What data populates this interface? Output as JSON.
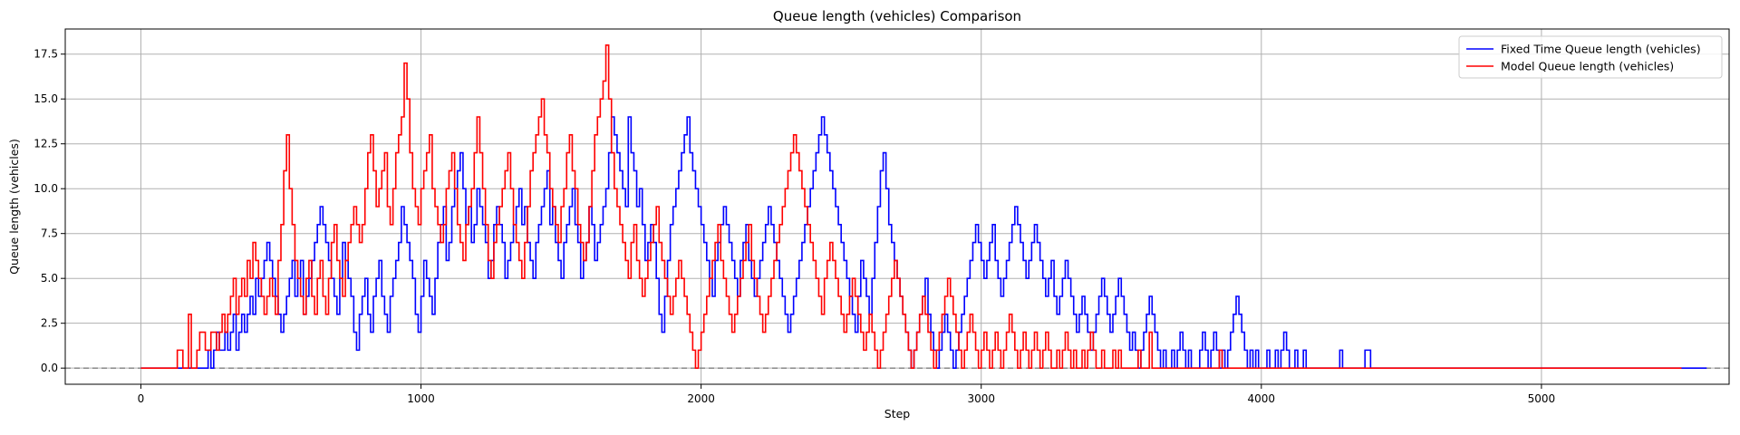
{
  "chart_data": {
    "type": "line",
    "title": "Queue length (vehicles) Comparison",
    "xlabel": "Step",
    "ylabel": "Queue length (vehicles)",
    "xlim": [
      -270,
      5670
    ],
    "ylim": [
      -0.9,
      18.9
    ],
    "xticks": [
      0,
      1000,
      2000,
      3000,
      4000,
      5000
    ],
    "xtick_labels": [
      "0",
      "1000",
      "2000",
      "3000",
      "4000",
      "5000"
    ],
    "yticks": [
      0.0,
      2.5,
      5.0,
      7.5,
      10.0,
      12.5,
      15.0,
      17.5
    ],
    "ytick_labels": [
      "0.0",
      "2.5",
      "5.0",
      "7.5",
      "10.0",
      "12.5",
      "15.0",
      "17.5"
    ],
    "grid": true,
    "legend_position": "top-right",
    "reference_line": {
      "y": 0,
      "style": "dashed",
      "color": "#808080"
    },
    "series": [
      {
        "name": "Fixed Time Queue length (vehicles)",
        "color": "#0000ff",
        "step": 10,
        "x_start": 0,
        "values": [
          0,
          0,
          0,
          0,
          0,
          0,
          0,
          0,
          0,
          0,
          0,
          0,
          0,
          0,
          0,
          0,
          0,
          0,
          0,
          0,
          0,
          0,
          0,
          0,
          1,
          0,
          1,
          2,
          1,
          1,
          2,
          1,
          2,
          3,
          1,
          2,
          3,
          2,
          3,
          4,
          3,
          5,
          4,
          5,
          6,
          7,
          6,
          5,
          4,
          3,
          2,
          3,
          4,
          5,
          6,
          4,
          5,
          6,
          3,
          4,
          5,
          6,
          7,
          8,
          9,
          8,
          7,
          6,
          5,
          4,
          3,
          5,
          7,
          6,
          5,
          4,
          2,
          1,
          3,
          4,
          5,
          3,
          2,
          4,
          5,
          6,
          4,
          3,
          2,
          4,
          5,
          6,
          7,
          9,
          8,
          7,
          6,
          5,
          3,
          2,
          4,
          6,
          5,
          4,
          3,
          5,
          7,
          8,
          9,
          6,
          7,
          9,
          10,
          11,
          12,
          10,
          8,
          9,
          7,
          8,
          10,
          9,
          8,
          7,
          5,
          6,
          8,
          9,
          8,
          7,
          5,
          6,
          7,
          8,
          9,
          10,
          8,
          9,
          7,
          6,
          5,
          7,
          8,
          9,
          10,
          11,
          8,
          9,
          7,
          6,
          5,
          7,
          8,
          9,
          10,
          8,
          7,
          5,
          6,
          7,
          9,
          8,
          6,
          7,
          8,
          9,
          10,
          12,
          14,
          13,
          12,
          11,
          10,
          9,
          14,
          12,
          11,
          9,
          10,
          8,
          6,
          7,
          8,
          7,
          5,
          3,
          2,
          4,
          6,
          8,
          9,
          10,
          11,
          12,
          13,
          14,
          12,
          11,
          10,
          9,
          8,
          7,
          6,
          5,
          4,
          6,
          7,
          8,
          9,
          8,
          7,
          6,
          5,
          4,
          6,
          7,
          8,
          6,
          5,
          4,
          5,
          6,
          7,
          8,
          9,
          8,
          7,
          6,
          5,
          4,
          3,
          2,
          3,
          4,
          5,
          6,
          7,
          8,
          9,
          10,
          11,
          12,
          13,
          14,
          13,
          12,
          11,
          10,
          9,
          8,
          7,
          6,
          5,
          4,
          3,
          2,
          4,
          6,
          5,
          4,
          3,
          5,
          7,
          9,
          11,
          12,
          10,
          8,
          7,
          6,
          5,
          4,
          3,
          2,
          1,
          0,
          1,
          2,
          3,
          4,
          5,
          3,
          2,
          1,
          0,
          1,
          2,
          3,
          2,
          1,
          0,
          1,
          2,
          3,
          4,
          5,
          6,
          7,
          8,
          7,
          6,
          5,
          6,
          7,
          8,
          6,
          5,
          4,
          5,
          6,
          7,
          8,
          9,
          8,
          7,
          6,
          5,
          6,
          7,
          8,
          7,
          6,
          5,
          4,
          5,
          6,
          4,
          3,
          4,
          5,
          6,
          5,
          4,
          3,
          2,
          3,
          4,
          3,
          2,
          1,
          2,
          3,
          4,
          5,
          4,
          3,
          2,
          3,
          4,
          5,
          4,
          3,
          2,
          1,
          2,
          1,
          0,
          1,
          2,
          3,
          4,
          3,
          2,
          1,
          0,
          1,
          0,
          0,
          1,
          0,
          1,
          2,
          1,
          0,
          1,
          0,
          0,
          0,
          1,
          2,
          1,
          0,
          1,
          2,
          1,
          0,
          1,
          0,
          1,
          2,
          3,
          4,
          3,
          2,
          1,
          0,
          1,
          0,
          1,
          0,
          0,
          0,
          1,
          0,
          0,
          1,
          0,
          1,
          2,
          1,
          0,
          0,
          1,
          0,
          0,
          1,
          0,
          0,
          0,
          0,
          0,
          0,
          0,
          0,
          0,
          0,
          0,
          0,
          1,
          0,
          0,
          0,
          0,
          0,
          0,
          0,
          0,
          1,
          1,
          0,
          0,
          0,
          0,
          0,
          0,
          0,
          0,
          0,
          0,
          0,
          0,
          0,
          0,
          0,
          0,
          0,
          0,
          0,
          0,
          0,
          0,
          0,
          0,
          0,
          0,
          0,
          0,
          0,
          0,
          0,
          0,
          0,
          0,
          0,
          0,
          0,
          0,
          0,
          0,
          0,
          0,
          0,
          0,
          0,
          0,
          0,
          0,
          0,
          0,
          0,
          0,
          0,
          0,
          0,
          0,
          0,
          0,
          0,
          0,
          0,
          0,
          0,
          0,
          0,
          0,
          0,
          0,
          0,
          0,
          0,
          0,
          0,
          0,
          0,
          0,
          0,
          0,
          0,
          0,
          0,
          0,
          0,
          0,
          0,
          0,
          0,
          0,
          0,
          0,
          0,
          0,
          0,
          0,
          0,
          0,
          0,
          0,
          0,
          0,
          0,
          0,
          0,
          0,
          0,
          0,
          0,
          0,
          0,
          0,
          0,
          0,
          0,
          0,
          0,
          0,
          0,
          0,
          0,
          0
        ]
      },
      {
        "name": "Model Queue length (vehicles)",
        "color": "#ff0000",
        "step": 10,
        "x_start": 0,
        "values": [
          0,
          0,
          0,
          0,
          0,
          0,
          0,
          0,
          0,
          0,
          0,
          0,
          0,
          1,
          1,
          0,
          0,
          3,
          0,
          0,
          1,
          2,
          2,
          1,
          1,
          2,
          2,
          1,
          2,
          3,
          2,
          3,
          4,
          5,
          3,
          4,
          5,
          4,
          6,
          5,
          7,
          6,
          5,
          4,
          3,
          4,
          5,
          4,
          3,
          6,
          8,
          11,
          13,
          10,
          8,
          6,
          5,
          4,
          3,
          5,
          6,
          4,
          3,
          5,
          6,
          4,
          3,
          5,
          7,
          8,
          6,
          5,
          4,
          6,
          7,
          8,
          9,
          8,
          7,
          8,
          10,
          12,
          13,
          11,
          9,
          10,
          11,
          12,
          9,
          8,
          10,
          12,
          13,
          14,
          17,
          15,
          12,
          10,
          9,
          8,
          10,
          11,
          12,
          13,
          10,
          9,
          8,
          7,
          8,
          10,
          11,
          12,
          10,
          8,
          7,
          6,
          8,
          9,
          10,
          12,
          14,
          12,
          10,
          8,
          6,
          5,
          7,
          8,
          9,
          10,
          11,
          12,
          10,
          8,
          7,
          6,
          5,
          7,
          9,
          11,
          12,
          13,
          14,
          15,
          13,
          12,
          10,
          9,
          8,
          7,
          9,
          10,
          12,
          13,
          11,
          10,
          8,
          7,
          6,
          7,
          9,
          11,
          13,
          14,
          15,
          16,
          18,
          15,
          12,
          10,
          9,
          8,
          7,
          6,
          5,
          7,
          8,
          6,
          5,
          4,
          5,
          6,
          7,
          8,
          9,
          7,
          6,
          5,
          4,
          3,
          4,
          5,
          6,
          5,
          4,
          3,
          2,
          1,
          0,
          1,
          2,
          3,
          4,
          5,
          6,
          7,
          8,
          6,
          5,
          4,
          3,
          2,
          3,
          4,
          5,
          6,
          7,
          8,
          6,
          5,
          4,
          3,
          2,
          3,
          4,
          5,
          6,
          7,
          8,
          9,
          10,
          11,
          12,
          13,
          12,
          11,
          10,
          9,
          8,
          7,
          6,
          5,
          4,
          3,
          5,
          6,
          7,
          6,
          5,
          4,
          3,
          2,
          3,
          4,
          5,
          4,
          3,
          2,
          1,
          2,
          3,
          2,
          1,
          0,
          1,
          2,
          3,
          4,
          5,
          6,
          5,
          4,
          3,
          2,
          1,
          0,
          1,
          2,
          3,
          4,
          3,
          2,
          1,
          0,
          1,
          2,
          3,
          4,
          5,
          4,
          3,
          2,
          1,
          0,
          1,
          2,
          3,
          2,
          1,
          0,
          1,
          2,
          1,
          0,
          1,
          2,
          1,
          0,
          1,
          2,
          3,
          2,
          1,
          0,
          1,
          2,
          1,
          0,
          1,
          2,
          1,
          0,
          1,
          2,
          1,
          0,
          0,
          1,
          0,
          1,
          2,
          1,
          0,
          1,
          0,
          0,
          1,
          0,
          1,
          2,
          1,
          0,
          0,
          1,
          0,
          0,
          0,
          1,
          0,
          1,
          0,
          0,
          0,
          0,
          0,
          0,
          1,
          0,
          0,
          0,
          2,
          0,
          0,
          0,
          0,
          0,
          0,
          0,
          0,
          0,
          0,
          0,
          0,
          0,
          0,
          0,
          0,
          0,
          0,
          0,
          0,
          0,
          0,
          0,
          0,
          1,
          0,
          0,
          0,
          0,
          0,
          0,
          0,
          0,
          0,
          0,
          0,
          0,
          0,
          0,
          0,
          0,
          0,
          0,
          0,
          0,
          0,
          0,
          0,
          0,
          0,
          0,
          0,
          0,
          0,
          0,
          0,
          0,
          0,
          0,
          0,
          0,
          0,
          0,
          0,
          0,
          0,
          0,
          0,
          0,
          0,
          0,
          0,
          0,
          0,
          0,
          0,
          0,
          0,
          0,
          0,
          0,
          0,
          0,
          0,
          0,
          0,
          0,
          0,
          0,
          0,
          0,
          0,
          0,
          0,
          0,
          0,
          0,
          0,
          0,
          0,
          0,
          0,
          0,
          0,
          0,
          0,
          0,
          0,
          0,
          0,
          0,
          0,
          0,
          0,
          0,
          0,
          0,
          0,
          0,
          0,
          0,
          0,
          0,
          0,
          0,
          0,
          0,
          0,
          0,
          0,
          0,
          0,
          0,
          0,
          0,
          0,
          0,
          0,
          0,
          0,
          0,
          0,
          0,
          0,
          0,
          0,
          0,
          0,
          0,
          0,
          0,
          0,
          0,
          0,
          0,
          0,
          0,
          0,
          0,
          0,
          0,
          0,
          0,
          0,
          0,
          0,
          0,
          0,
          0,
          0,
          0,
          0,
          0,
          0,
          0,
          0,
          0,
          0,
          0,
          0,
          0,
          0,
          0,
          0,
          0,
          0,
          0,
          0,
          0
        ]
      }
    ]
  }
}
